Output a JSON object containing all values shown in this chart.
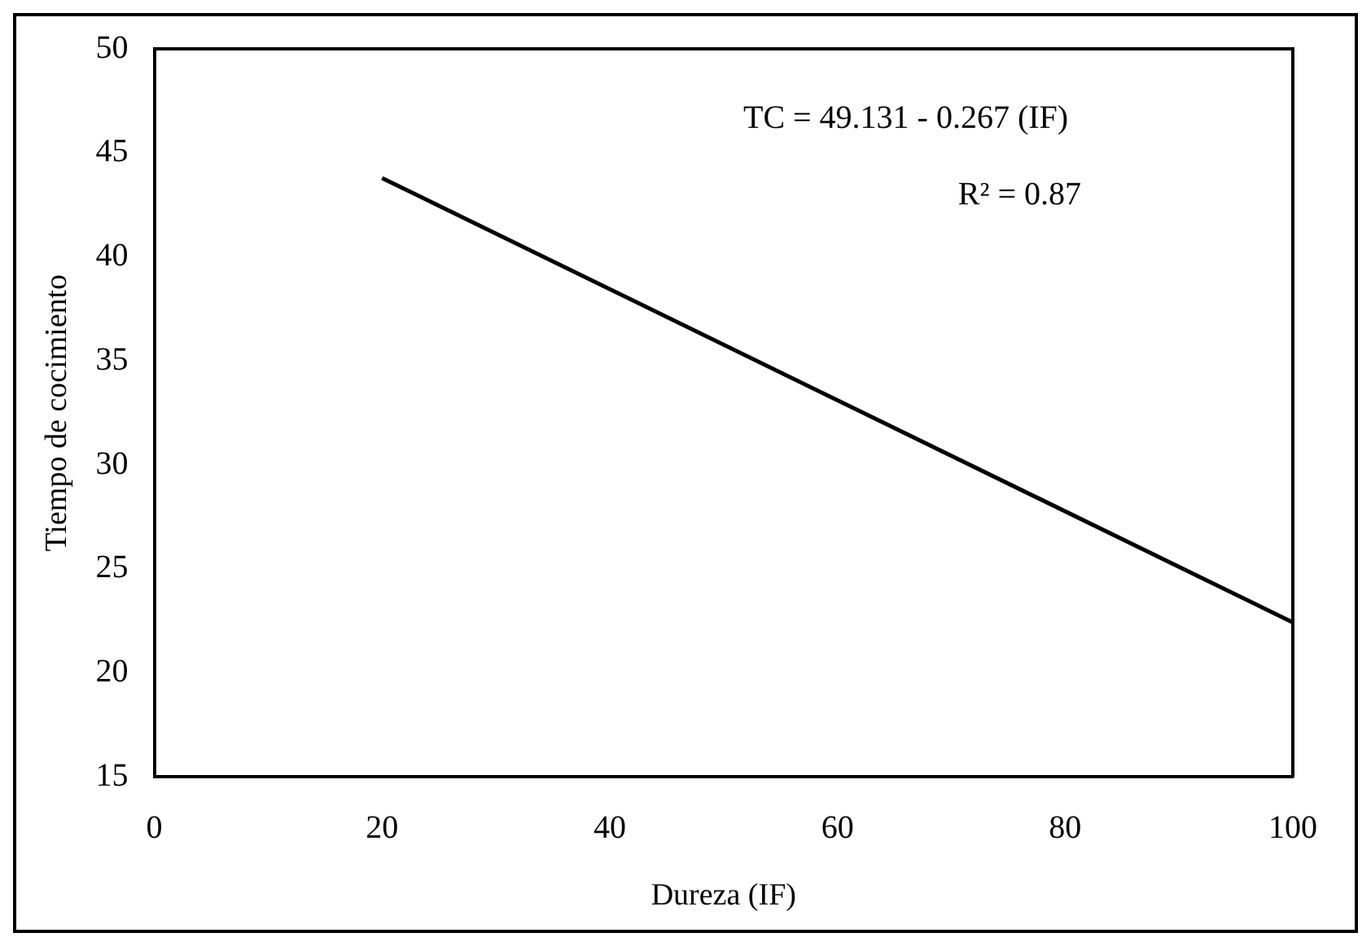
{
  "chart_data": {
    "type": "line",
    "xlabel": "Dureza (IF)",
    "ylabel": "Tiempo de cocimiento",
    "annotations": [
      "TC = 49.131 - 0.267 (IF)",
      "R² = 0.87"
    ],
    "x": [
      20,
      100
    ],
    "series": [
      {
        "color": "#000000",
        "values": [
          43.79,
          22.43
        ]
      }
    ],
    "xlim": [
      0,
      100
    ],
    "xticks": [
      0,
      20,
      40,
      60,
      80,
      100
    ],
    "ylim": [
      15,
      50
    ],
    "yticks": [
      15,
      20,
      25,
      30,
      35,
      40,
      45,
      50
    ],
    "grid": false,
    "legend": false,
    "marker": "none",
    "line_style": "solid"
  }
}
